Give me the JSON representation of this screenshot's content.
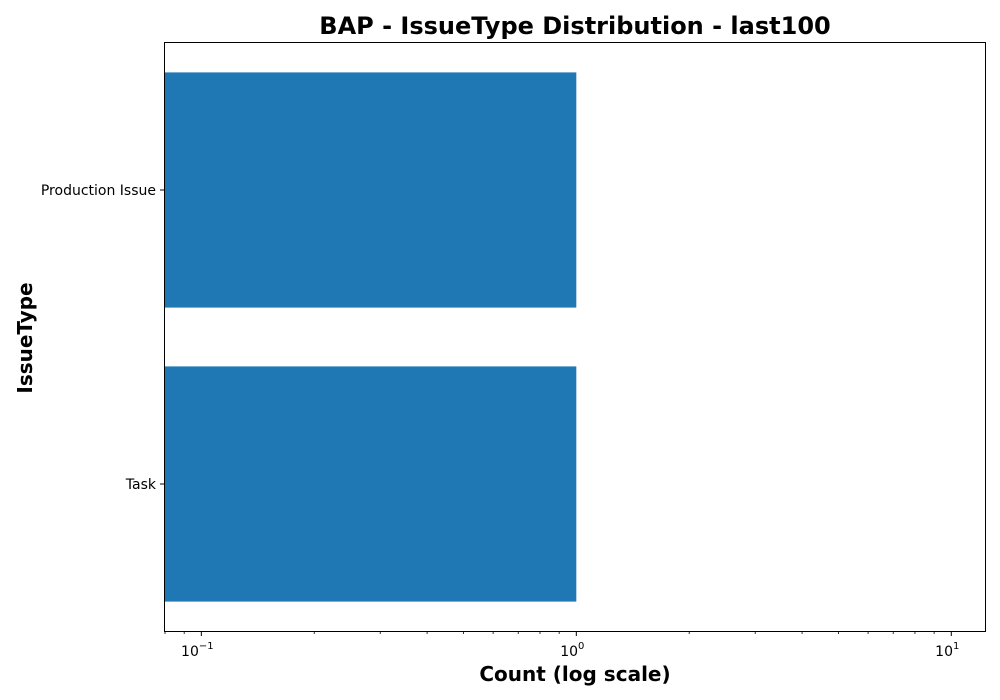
{
  "chart_data": {
    "type": "bar",
    "orientation": "horizontal",
    "title": "BAP - IssueType Distribution - last100",
    "xlabel": "Count (log scale)",
    "ylabel": "IssueType",
    "x_scale": "log",
    "xlim": [
      0.08,
      12.3
    ],
    "categories": [
      "Production Issue",
      "Task"
    ],
    "values": [
      1,
      1
    ],
    "x_ticks": [
      {
        "value": 0.1,
        "base": "10",
        "exp": "−1"
      },
      {
        "value": 1,
        "base": "10",
        "exp": "0"
      },
      {
        "value": 10,
        "base": "10",
        "exp": "1"
      }
    ],
    "bar_color": "#1f77b4",
    "grid": false,
    "legend": false
  }
}
